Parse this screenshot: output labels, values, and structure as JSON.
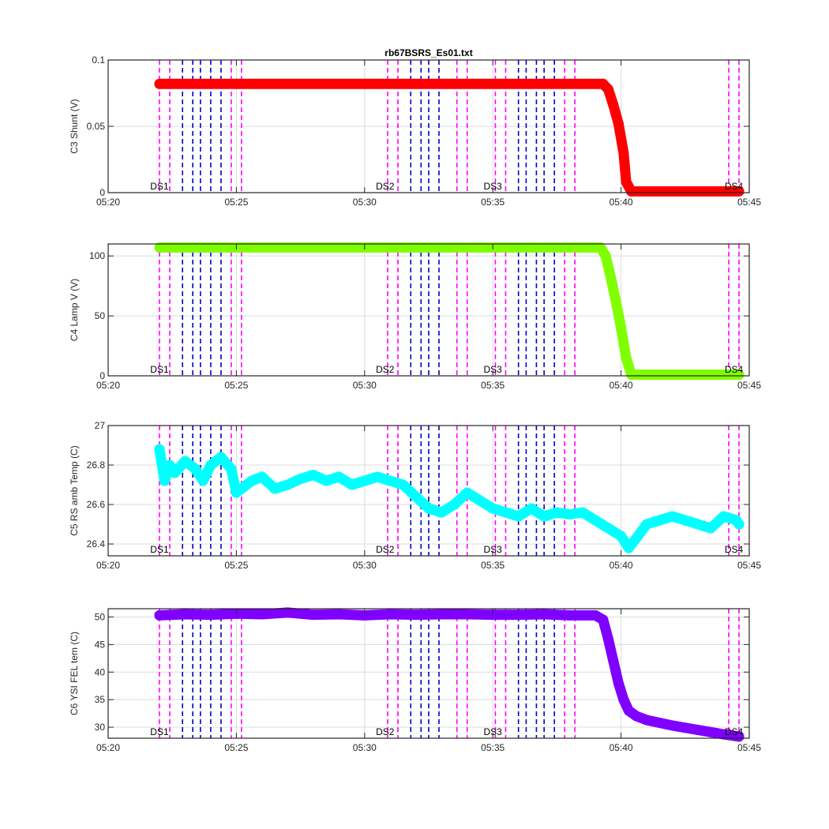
{
  "chart_data": [
    {
      "type": "scatter",
      "title": "rb67BSRS_Es01.txt",
      "ylabel": "C3 Shunt (V)",
      "xlabel": "",
      "xlim": [
        20,
        45
      ],
      "ylim": [
        0,
        0.1
      ],
      "yticks": [
        0,
        0.05,
        0.1
      ],
      "ytick_labels": [
        "0",
        "0.05",
        "0.1"
      ],
      "color": "#ff0000",
      "series": [
        {
          "name": "C3 Shunt",
          "x": [
            22,
            39.3,
            39.5,
            39.7,
            39.9,
            40.1,
            40.2,
            40.4,
            44.6
          ],
          "y": [
            0.082,
            0.082,
            0.078,
            0.066,
            0.052,
            0.03,
            0.008,
            0.001,
            0.001
          ]
        }
      ]
    },
    {
      "type": "scatter",
      "title": "",
      "ylabel": "C4 Lamp V (V)",
      "xlabel": "",
      "xlim": [
        20,
        45
      ],
      "ylim": [
        0,
        110
      ],
      "yticks": [
        0,
        50,
        100
      ],
      "ytick_labels": [
        "0",
        "50",
        "100"
      ],
      "color": "#80ff00",
      "series": [
        {
          "name": "C4 Lamp V",
          "x": [
            22,
            39.2,
            39.4,
            39.6,
            39.8,
            40.0,
            40.2,
            40.4,
            44.6
          ],
          "y": [
            107,
            107,
            100,
            82,
            62,
            40,
            15,
            1,
            1
          ]
        }
      ]
    },
    {
      "type": "scatter",
      "title": "",
      "ylabel": "C5 RS amb Temp (C)",
      "xlabel": "",
      "xlim": [
        20,
        45
      ],
      "ylim": [
        26.34,
        27
      ],
      "yticks": [
        26.4,
        26.6,
        26.8,
        27
      ],
      "ytick_labels": [
        "26.4",
        "26.6",
        "26.8",
        "27"
      ],
      "color": "#00ffff",
      "series": [
        {
          "name": "C5 RS amb Temp",
          "x": [
            22,
            22.2,
            22.4,
            22.6,
            23.0,
            23.4,
            23.7,
            24.0,
            24.4,
            24.8,
            25.0,
            25.2,
            25.6,
            26.0,
            26.5,
            27.0,
            27.5,
            28.0,
            28.5,
            29.0,
            29.5,
            30.0,
            30.5,
            31.0,
            31.5,
            32.0,
            32.5,
            33.0,
            33.5,
            34.0,
            34.5,
            35.0,
            35.5,
            36.0,
            36.5,
            37.0,
            37.5,
            38.0,
            38.5,
            39.0,
            39.5,
            40.0,
            40.3,
            40.6,
            41.0,
            41.5,
            42.0,
            42.5,
            43.0,
            43.5,
            44.0,
            44.5,
            44.6
          ],
          "y": [
            26.88,
            26.72,
            26.8,
            26.76,
            26.82,
            26.78,
            26.72,
            26.8,
            26.84,
            26.78,
            26.66,
            26.68,
            26.72,
            26.74,
            26.68,
            26.7,
            26.73,
            26.75,
            26.72,
            26.74,
            26.7,
            26.72,
            26.74,
            26.72,
            26.7,
            26.64,
            26.58,
            26.56,
            26.6,
            26.66,
            26.62,
            26.58,
            26.56,
            26.54,
            26.58,
            26.54,
            26.56,
            26.55,
            26.56,
            26.52,
            26.48,
            26.44,
            26.38,
            26.43,
            26.5,
            26.52,
            26.54,
            26.52,
            26.5,
            26.48,
            26.54,
            26.52,
            26.5
          ]
        }
      ]
    },
    {
      "type": "scatter",
      "title": "",
      "ylabel": "C6 YSI FEL tem (C)",
      "xlabel": "",
      "xlim": [
        20,
        45
      ],
      "ylim": [
        28,
        51.5
      ],
      "yticks": [
        30,
        35,
        40,
        45,
        50
      ],
      "ytick_labels": [
        "30",
        "35",
        "40",
        "45",
        "50"
      ],
      "color": "#8000ff",
      "series": [
        {
          "name": "C6 YSI FEL tem",
          "x": [
            22,
            23,
            24,
            25,
            26,
            27,
            28,
            29,
            30,
            31,
            32,
            33,
            34,
            35,
            36,
            37,
            38,
            39,
            39.3,
            39.5,
            39.7,
            39.9,
            40.1,
            40.3,
            40.6,
            41.0,
            41.5,
            42,
            42.5,
            43,
            43.5,
            44,
            44.6
          ],
          "y": [
            50.3,
            50.5,
            50.4,
            50.6,
            50.5,
            50.8,
            50.4,
            50.5,
            50.3,
            50.5,
            50.4,
            50.5,
            50.5,
            50.4,
            50.4,
            50.5,
            50.3,
            50.3,
            49.5,
            46,
            42,
            38,
            35,
            33,
            32,
            31.3,
            30.8,
            30.3,
            29.9,
            29.5,
            29.1,
            28.7,
            28.3
          ]
        }
      ]
    }
  ],
  "x_axis": {
    "ticks": [
      20,
      25,
      30,
      35,
      40,
      45
    ],
    "tick_labels": [
      "05:20",
      "05:25",
      "05:30",
      "05:35",
      "05:40",
      "05:45"
    ]
  },
  "markers": {
    "ds_labels": [
      {
        "text": "DS1",
        "x": 22
      },
      {
        "text": "DS2",
        "x": 30.8
      },
      {
        "text": "DS3",
        "x": 35.0
      },
      {
        "text": "DS4",
        "x": 44.4
      }
    ],
    "magenta_lines": [
      22.0,
      22.4,
      24.8,
      25.2,
      30.9,
      31.3,
      33.6,
      34.0,
      35.1,
      35.5,
      37.8,
      38.2,
      44.2,
      44.6
    ],
    "blue_lines": [
      22.9,
      23.3,
      23.6,
      24.0,
      24.4,
      31.8,
      32.2,
      32.5,
      32.9,
      36.0,
      36.3,
      36.7,
      37.0,
      37.4
    ],
    "magenta_color": "#ff00ff",
    "blue_color": "#0000cc"
  }
}
